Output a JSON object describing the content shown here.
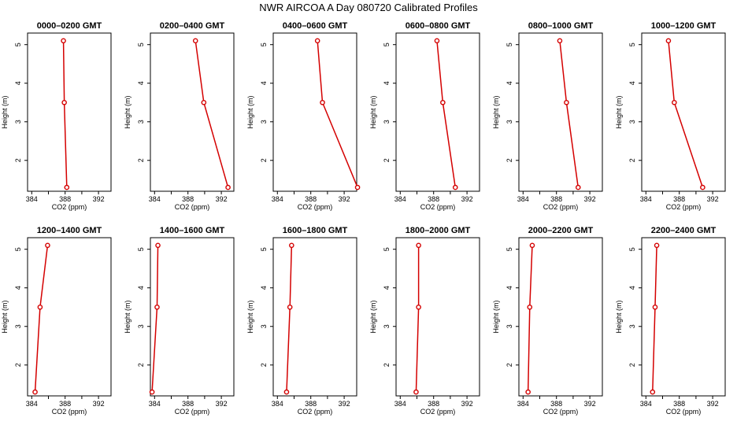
{
  "figure": {
    "title": "NWR AIRCOA A  Day 080720  Calibrated Profiles",
    "line_color": "#d40000"
  },
  "chart_data": [
    {
      "type": "line",
      "title": "0000–0200 GMT",
      "xlabel": "CO2 (ppm)",
      "ylabel": "Height (m)",
      "xlim": [
        383.5,
        393.5
      ],
      "ylim": [
        1.2,
        5.3
      ],
      "xticks": [
        "384",
        "388",
        "392"
      ],
      "yticks": [
        "2",
        "3",
        "4",
        "5"
      ],
      "x": [
        387.8,
        387.9,
        388.2
      ],
      "y": [
        5.1,
        3.5,
        1.3
      ]
    },
    {
      "type": "line",
      "title": "0200–0400 GMT",
      "xlabel": "CO2 (ppm)",
      "ylabel": "Height (m)",
      "xlim": [
        383.5,
        393.5
      ],
      "ylim": [
        1.2,
        5.3
      ],
      "xticks": [
        "384",
        "388",
        "392"
      ],
      "yticks": [
        "2",
        "3",
        "4",
        "5"
      ],
      "x": [
        388.9,
        389.9,
        392.8
      ],
      "y": [
        5.1,
        3.5,
        1.3
      ]
    },
    {
      "type": "line",
      "title": "0400–0600 GMT",
      "xlabel": "CO2 (ppm)",
      "ylabel": "Height (m)",
      "xlim": [
        383.5,
        393.5
      ],
      "ylim": [
        1.2,
        5.3
      ],
      "xticks": [
        "384",
        "388",
        "392"
      ],
      "yticks": [
        "2",
        "3",
        "4",
        "5"
      ],
      "x": [
        388.8,
        389.4,
        393.6
      ],
      "y": [
        5.1,
        3.5,
        1.3
      ]
    },
    {
      "type": "line",
      "title": "0600–0800 GMT",
      "xlabel": "CO2 (ppm)",
      "ylabel": "Height (m)",
      "xlim": [
        383.5,
        393.5
      ],
      "ylim": [
        1.2,
        5.3
      ],
      "xticks": [
        "384",
        "388",
        "392"
      ],
      "yticks": [
        "2",
        "3",
        "4",
        "5"
      ],
      "x": [
        388.4,
        389.1,
        390.6
      ],
      "y": [
        5.1,
        3.5,
        1.3
      ]
    },
    {
      "type": "line",
      "title": "0800–1000 GMT",
      "xlabel": "CO2 (ppm)",
      "ylabel": "Height (m)",
      "xlim": [
        383.5,
        393.5
      ],
      "ylim": [
        1.2,
        5.3
      ],
      "xticks": [
        "384",
        "388",
        "392"
      ],
      "yticks": [
        "2",
        "3",
        "4",
        "5"
      ],
      "x": [
        388.4,
        389.2,
        390.6
      ],
      "y": [
        5.1,
        3.5,
        1.3
      ]
    },
    {
      "type": "line",
      "title": "1000–1200 GMT",
      "xlabel": "CO2 (ppm)",
      "ylabel": "Height (m)",
      "xlim": [
        383.5,
        393.5
      ],
      "ylim": [
        1.2,
        5.3
      ],
      "xticks": [
        "384",
        "388",
        "392"
      ],
      "yticks": [
        "2",
        "3",
        "4",
        "5"
      ],
      "x": [
        386.7,
        387.4,
        390.8
      ],
      "y": [
        5.1,
        3.5,
        1.3
      ]
    },
    {
      "type": "line",
      "title": "1200–1400 GMT",
      "xlabel": "CO2 (ppm)",
      "ylabel": "Height (m)",
      "xlim": [
        383.5,
        393.5
      ],
      "ylim": [
        1.2,
        5.3
      ],
      "xticks": [
        "384",
        "388",
        "392"
      ],
      "yticks": [
        "2",
        "3",
        "4",
        "5"
      ],
      "x": [
        385.9,
        385.0,
        384.4
      ],
      "y": [
        5.1,
        3.5,
        1.3
      ]
    },
    {
      "type": "line",
      "title": "1400–1600 GMT",
      "xlabel": "CO2 (ppm)",
      "ylabel": "Height (m)",
      "xlim": [
        383.5,
        393.5
      ],
      "ylim": [
        1.2,
        5.3
      ],
      "xticks": [
        "384",
        "388",
        "392"
      ],
      "yticks": [
        "2",
        "3",
        "4",
        "5"
      ],
      "x": [
        384.4,
        384.3,
        383.7
      ],
      "y": [
        5.1,
        3.5,
        1.3
      ]
    },
    {
      "type": "line",
      "title": "1600–1800 GMT",
      "xlabel": "CO2 (ppm)",
      "ylabel": "Height (m)",
      "xlim": [
        383.5,
        393.5
      ],
      "ylim": [
        1.2,
        5.3
      ],
      "xticks": [
        "384",
        "388",
        "392"
      ],
      "yticks": [
        "2",
        "3",
        "4",
        "5"
      ],
      "x": [
        385.7,
        385.5,
        385.1
      ],
      "y": [
        5.1,
        3.5,
        1.3
      ]
    },
    {
      "type": "line",
      "title": "1800–2000 GMT",
      "xlabel": "CO2 (ppm)",
      "ylabel": "Height (m)",
      "xlim": [
        383.5,
        393.5
      ],
      "ylim": [
        1.2,
        5.3
      ],
      "xticks": [
        "384",
        "388",
        "392"
      ],
      "yticks": [
        "2",
        "3",
        "4",
        "5"
      ],
      "x": [
        386.2,
        386.2,
        385.9
      ],
      "y": [
        5.1,
        3.5,
        1.3
      ]
    },
    {
      "type": "line",
      "title": "2000–2200 GMT",
      "xlabel": "CO2 (ppm)",
      "ylabel": "Height (m)",
      "xlim": [
        383.5,
        393.5
      ],
      "ylim": [
        1.2,
        5.3
      ],
      "xticks": [
        "384",
        "388",
        "392"
      ],
      "yticks": [
        "2",
        "3",
        "4",
        "5"
      ],
      "x": [
        385.1,
        384.8,
        384.6
      ],
      "y": [
        5.1,
        3.5,
        1.3
      ]
    },
    {
      "type": "line",
      "title": "2200–2400 GMT",
      "xlabel": "CO2 (ppm)",
      "ylabel": "Height (m)",
      "xlim": [
        383.5,
        393.5
      ],
      "ylim": [
        1.2,
        5.3
      ],
      "xticks": [
        "384",
        "388",
        "392"
      ],
      "yticks": [
        "2",
        "3",
        "4",
        "5"
      ],
      "x": [
        385.3,
        385.1,
        384.8
      ],
      "y": [
        5.1,
        3.5,
        1.3
      ]
    }
  ]
}
